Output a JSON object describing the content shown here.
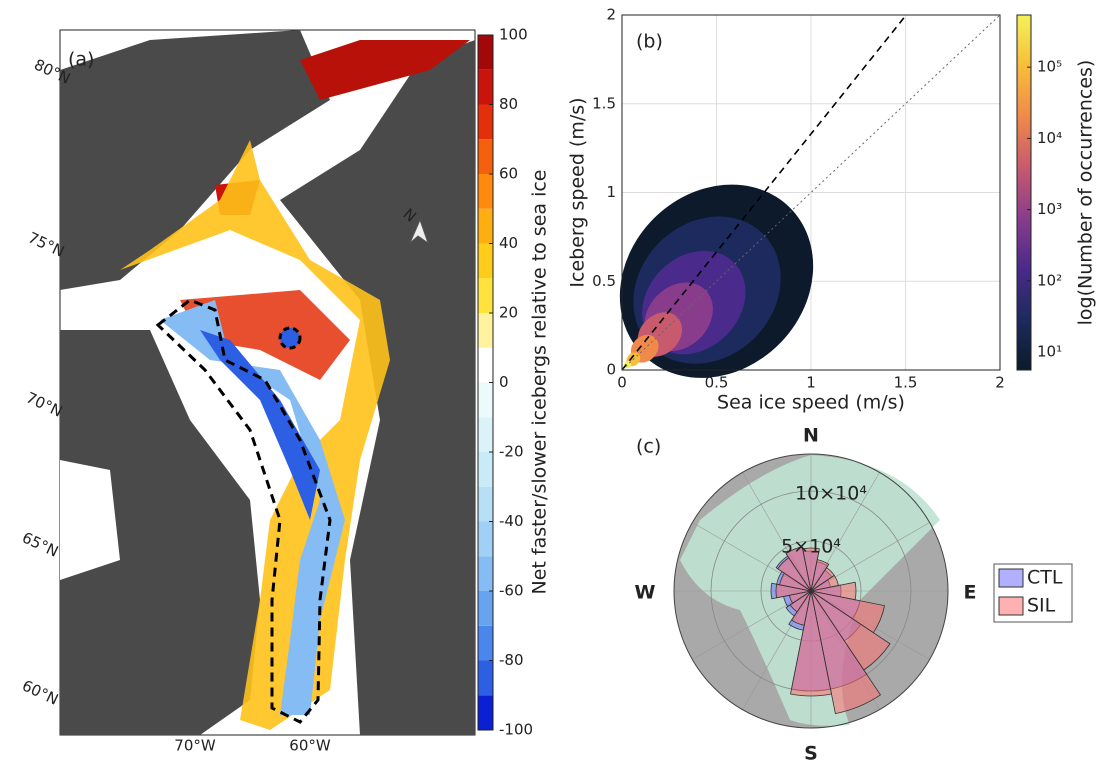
{
  "chart_data": [
    {
      "type": "map",
      "panel_label": "(a)",
      "colorbar_label": "Net faster/slower icebergs relative to sea ice",
      "clim": [
        -100,
        100
      ],
      "cticks": [
        -100,
        -80,
        -60,
        -40,
        -20,
        0,
        20,
        40,
        60,
        80,
        100
      ],
      "colormap": [
        "#0b1fd3",
        "#2c5fe3",
        "#4a86ec",
        "#68a3f0",
        "#86bcf4",
        "#a0d0f6",
        "#b7e0f7",
        "#c9ebf8",
        "#daf3f9",
        "#edfafb",
        "#ffffff",
        "#fff3a0",
        "#ffe23c",
        "#ffcc1a",
        "#ffae12",
        "#ff8a0e",
        "#f4600d",
        "#e4300a",
        "#c8140a",
        "#a30808"
      ],
      "lat_labels": [
        "80°N",
        "75°N",
        "70°N",
        "65°N",
        "60°N"
      ],
      "lon_labels": [
        "70°W",
        "60°W"
      ]
    },
    {
      "type": "hist2d",
      "panel_label": "(b)",
      "xlabel": "Sea ice speed (m/s)",
      "ylabel": "Iceberg speed (m/s)",
      "xlim": [
        0,
        2
      ],
      "ylim": [
        0,
        2
      ],
      "xticks": [
        0,
        0.5,
        1,
        1.5,
        2
      ],
      "yticks": [
        0,
        0.5,
        1,
        1.5,
        2
      ],
      "grid": true,
      "colorbar_label": "log(Number of occurrences)",
      "log_scale": true,
      "clim": [
        5.6,
        540000
      ],
      "cticks": [
        {
          "value": 10,
          "label": "10¹"
        },
        {
          "value": 100,
          "label": "10²"
        },
        {
          "value": 1000,
          "label": "10³"
        },
        {
          "value": 10000,
          "label": "10⁴"
        },
        {
          "value": 100000,
          "label": "10⁵"
        }
      ],
      "colormap": [
        "#0c1a2c",
        "#1d2a5e",
        "#4a2a8a",
        "#8a3c8c",
        "#c85a6e",
        "#ef8a4a",
        "#f8bd3a",
        "#f4f25a"
      ],
      "lines": [
        {
          "slope": 1.33,
          "style": "dashed"
        },
        {
          "slope": 1,
          "style": "dotted"
        }
      ]
    },
    {
      "type": "polar_bar",
      "panel_label": "(c)",
      "compass": [
        "N",
        "E",
        "S",
        "W"
      ],
      "theta": [
        0,
        22.5,
        45,
        67.5,
        90,
        112.5,
        135,
        157.5,
        180,
        202.5,
        225,
        247.5,
        270,
        292.5,
        315,
        337.5
      ],
      "rlim": [
        0,
        137000
      ],
      "rticks": [
        {
          "value": 50000,
          "label": "5×10⁴"
        },
        {
          "value": 100000,
          "label": "10×10⁴"
        }
      ],
      "series": [
        {
          "name": "CTL",
          "color": "#6f6fff",
          "values": [
            40000,
            30000,
            25000,
            20000,
            30000,
            50000,
            60000,
            100000,
            100000,
            40000,
            30000,
            28000,
            40000,
            35000,
            42000,
            45000
          ]
        },
        {
          "name": "SIL",
          "color": "#ff7070",
          "values": [
            43000,
            32000,
            28000,
            28000,
            45000,
            75000,
            95000,
            125000,
            105000,
            35000,
            25000,
            22000,
            35000,
            32000,
            40000,
            45000
          ]
        }
      ]
    }
  ]
}
